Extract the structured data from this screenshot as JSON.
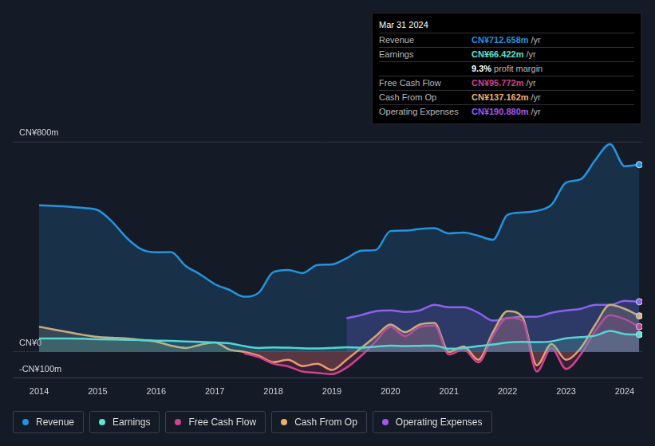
{
  "chart_data": {
    "type": "line",
    "x": [
      2014,
      2014.25,
      2014.5,
      2014.75,
      2015,
      2015.25,
      2015.5,
      2015.75,
      2016,
      2016.25,
      2016.5,
      2016.75,
      2017,
      2017.25,
      2017.5,
      2017.75,
      2018,
      2018.25,
      2018.5,
      2018.75,
      2019,
      2019.25,
      2019.5,
      2019.75,
      2020,
      2020.25,
      2020.5,
      2020.75,
      2021,
      2021.25,
      2021.5,
      2021.75,
      2022,
      2022.25,
      2022.5,
      2022.75,
      2023,
      2023.25,
      2023.5,
      2023.75,
      2024,
      2024.25
    ],
    "xlim": [
      2013.55,
      2024.3
    ],
    "xticks": [
      2014,
      2015,
      2016,
      2017,
      2018,
      2019,
      2020,
      2021,
      2022,
      2023,
      2024
    ],
    "ylim": [
      -100,
      800
    ],
    "yticks": [
      {
        "value": -100,
        "label": "-CN¥100m"
      },
      {
        "value": 0,
        "label": "CN¥0"
      },
      {
        "value": 800,
        "label": "CN¥800m"
      }
    ],
    "grid": true,
    "legend": "bottom",
    "series": [
      {
        "name": "Revenue",
        "color": "#2394df",
        "values": [
          558,
          556,
          553,
          548,
          540,
          495,
          433,
          390,
          379,
          380,
          328,
          295,
          258,
          236,
          210,
          225,
          304,
          312,
          300,
          331,
          333,
          356,
          385,
          388,
          460,
          462,
          468,
          471,
          451,
          454,
          442,
          427,
          522,
          531,
          537,
          560,
          645,
          657,
          731,
          791,
          707,
          713
        ]
      },
      {
        "name": "Earnings",
        "color": "#5ee6d0",
        "values": [
          51,
          51,
          51,
          50,
          48,
          47,
          46,
          45,
          43,
          42,
          40,
          38,
          36,
          33,
          22,
          15,
          17,
          16,
          14,
          13,
          15,
          18,
          16,
          20,
          24,
          22,
          23,
          24,
          12,
          15,
          22,
          28,
          36,
          38,
          37,
          40,
          52,
          56,
          62,
          80,
          68,
          66
        ]
      },
      {
        "name": "Free Cash Flow",
        "color": "#d0428c",
        "values": [
          null,
          null,
          null,
          null,
          null,
          null,
          null,
          null,
          null,
          null,
          null,
          null,
          null,
          null,
          -5,
          -20,
          -45,
          -55,
          -75,
          -80,
          -85,
          -60,
          -15,
          40,
          95,
          60,
          95,
          100,
          -10,
          10,
          -40,
          60,
          130,
          120,
          -75,
          15,
          -65,
          -10,
          80,
          140,
          125,
          96
        ]
      },
      {
        "name": "Cash From Op",
        "color": "#f0b16a",
        "values": [
          96,
          85,
          75,
          65,
          57,
          54,
          51,
          45,
          39,
          24,
          15,
          27,
          36,
          9,
          0,
          -15,
          -39,
          -30,
          -54,
          -45,
          -69,
          -30,
          15,
          60,
          104,
          75,
          104,
          110,
          0,
          21,
          -30,
          75,
          155,
          134,
          -51,
          30,
          -30,
          15,
          104,
          179,
          164,
          137
        ]
      },
      {
        "name": "Operating Expenses",
        "color": "#a456f0",
        "values": [
          null,
          null,
          null,
          null,
          null,
          null,
          null,
          null,
          null,
          null,
          null,
          null,
          null,
          null,
          null,
          null,
          null,
          null,
          null,
          null,
          null,
          128,
          140,
          155,
          158,
          152,
          158,
          179,
          170,
          170,
          149,
          119,
          128,
          134,
          134,
          149,
          158,
          164,
          179,
          179,
          194,
          191
        ]
      }
    ],
    "annotations": [
      {
        "title": "Mar 31 2024",
        "rows": [
          {
            "label": "Revenue",
            "value": "CN¥712.658m",
            "unit": "/yr"
          },
          {
            "label": "Earnings",
            "value": "CN¥66.422m",
            "unit": "/yr"
          },
          {
            "value": "9.3%",
            "unit": "profit margin"
          },
          {
            "label": "Free Cash Flow",
            "value": "CN¥95.772m",
            "unit": "/yr"
          },
          {
            "label": "Cash From Op",
            "value": "CN¥137.162m",
            "unit": "/yr"
          },
          {
            "label": "Operating Expenses",
            "value": "CN¥190.880m",
            "unit": "/yr"
          }
        ]
      }
    ]
  }
}
